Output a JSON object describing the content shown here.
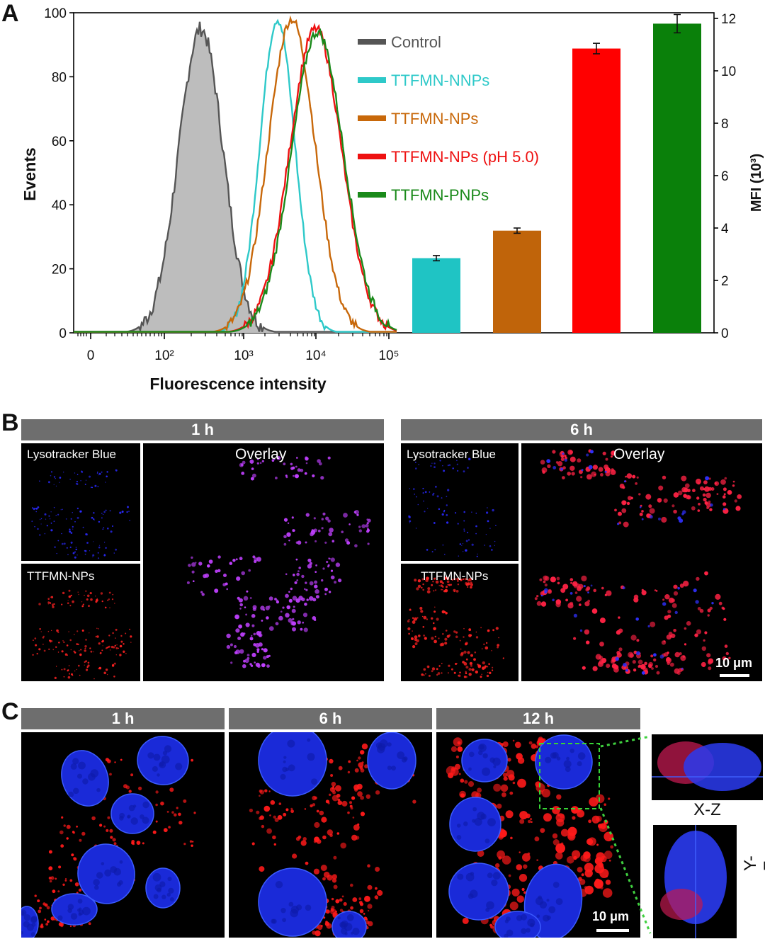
{
  "panels": {
    "a": "A",
    "b": "B",
    "c": "C"
  },
  "chart_data": {
    "type": "histogram+bar",
    "hist": {
      "xlabel": "Fluorescence intensity",
      "ylabel": "Events",
      "yticks": [
        "0",
        "20",
        "40",
        "60",
        "80",
        "100"
      ],
      "xtick_labels": [
        "0",
        "10²",
        "10³",
        "10⁴",
        "10⁵"
      ],
      "ylim": [
        0,
        100
      ],
      "series": [
        {
          "name": "Control",
          "color": "#555555",
          "peak_log": 2.1,
          "peak": 95
        },
        {
          "name": "TTFMN-NNPs",
          "color": "#2ec9c9",
          "peak_log": 3.28,
          "peak": 98
        },
        {
          "name": "TTFMN-NPs",
          "color": "#c8680a",
          "peak_log": 3.5,
          "peak": 98
        },
        {
          "name": "TTFMN-NPs (pH 5.0)",
          "color": "#ee1111",
          "peak_log": 3.87,
          "peak": 95
        },
        {
          "name": "TTFMN-PNPs",
          "color": "#1a8a1a",
          "peak_log": 3.9,
          "peak": 94
        }
      ]
    },
    "bar": {
      "ylabel": "MFI (10³)",
      "yticks": [
        "0",
        "2",
        "4",
        "6",
        "8",
        "10",
        "12"
      ],
      "ylim": [
        0,
        12
      ],
      "series": [
        {
          "name": "TTFMN-NNPs",
          "value": 2.85,
          "err": 0.1,
          "color": "#1fc4c4"
        },
        {
          "name": "TTFMN-NPs",
          "value": 3.9,
          "err": 0.1,
          "color": "#c0640a"
        },
        {
          "name": "TTFMN-NPs (pH 5.0)",
          "value": 10.85,
          "err": 0.2,
          "color": "#ff0000"
        },
        {
          "name": "TTFMN-PNPs",
          "value": 11.8,
          "err": 0.35,
          "color": "#0a800a"
        }
      ]
    }
  },
  "panel_b": {
    "group1": {
      "time": "1 h",
      "lyso": "Lysotracker Blue",
      "np": "TTFMN-NPs",
      "overlay": "Overlay"
    },
    "group2": {
      "time": "6 h",
      "lyso": "Lysotracker Blue",
      "np": "TTFMN-NPs",
      "overlay": "Overlay"
    },
    "scale": "10 μm"
  },
  "panel_c": {
    "times": [
      "1 h",
      "6 h",
      "12 h"
    ],
    "xz": "X-Z",
    "yz": "Y-Z",
    "scale": "10 μm"
  }
}
